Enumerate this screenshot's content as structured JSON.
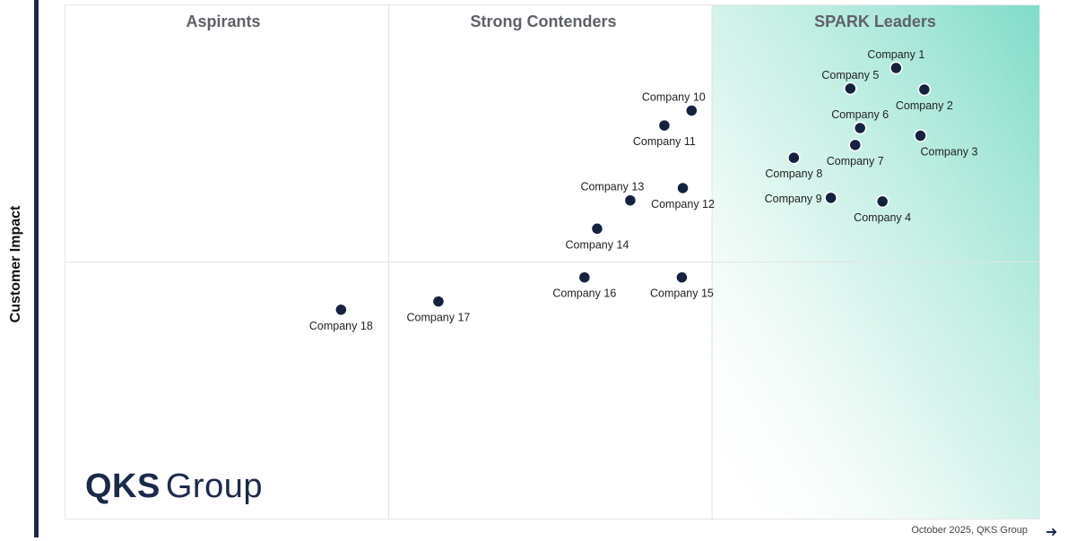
{
  "y_axis_title": "Customer Impact",
  "quadrants": [
    {
      "key": "aspirants",
      "label": "Aspirants"
    },
    {
      "key": "contenders",
      "label": "Strong Contenders"
    },
    {
      "key": "leaders",
      "label": "SPARK Leaders"
    }
  ],
  "logo": {
    "primary": "QKS",
    "secondary": "Group"
  },
  "footnote": "October 2025, QKS Group",
  "colors": {
    "point": "#15223f",
    "leader_gradient": "#7fdcc8",
    "axis": "#1b2a4a"
  },
  "chart_data": {
    "type": "scatter",
    "title": "",
    "xlabel": "",
    "ylabel": "Customer Impact",
    "xlim": [
      0,
      100
    ],
    "ylim": [
      0,
      100
    ],
    "grid": false,
    "quadrant_dividers": {
      "x": [
        33.2,
        66.4
      ],
      "y": 50
    },
    "points": [
      {
        "name": "Company 1",
        "x": 85.3,
        "y": 87.8,
        "label_pos": "above"
      },
      {
        "name": "Company 2",
        "x": 88.2,
        "y": 83.6,
        "label_pos": "below"
      },
      {
        "name": "Company 3",
        "x": 87.8,
        "y": 74.6,
        "label_pos": "below-right"
      },
      {
        "name": "Company 4",
        "x": 83.9,
        "y": 61.8,
        "label_pos": "below"
      },
      {
        "name": "Company 5",
        "x": 80.6,
        "y": 83.8,
        "label_pos": "above"
      },
      {
        "name": "Company 6",
        "x": 81.6,
        "y": 76.1,
        "label_pos": "above"
      },
      {
        "name": "Company 7",
        "x": 81.1,
        "y": 72.8,
        "label_pos": "below"
      },
      {
        "name": "Company 8",
        "x": 74.8,
        "y": 70.3,
        "label_pos": "below"
      },
      {
        "name": "Company 9",
        "x": 78.6,
        "y": 62.5,
        "label_pos": "left"
      },
      {
        "name": "Company 10",
        "x": 64.3,
        "y": 79.5,
        "label_pos": "above-left"
      },
      {
        "name": "Company 11",
        "x": 61.5,
        "y": 76.6,
        "label_pos": "below"
      },
      {
        "name": "Company 12",
        "x": 63.4,
        "y": 64.4,
        "label_pos": "below"
      },
      {
        "name": "Company 13",
        "x": 58.0,
        "y": 62.0,
        "label_pos": "above-left"
      },
      {
        "name": "Company 14",
        "x": 54.6,
        "y": 56.5,
        "label_pos": "below"
      },
      {
        "name": "Company 15",
        "x": 63.3,
        "y": 47.0,
        "label_pos": "below"
      },
      {
        "name": "Company 16",
        "x": 53.3,
        "y": 47.0,
        "label_pos": "below"
      },
      {
        "name": "Company 17",
        "x": 38.3,
        "y": 42.3,
        "label_pos": "below"
      },
      {
        "name": "Company 18",
        "x": 28.3,
        "y": 40.7,
        "label_pos": "below"
      }
    ]
  }
}
